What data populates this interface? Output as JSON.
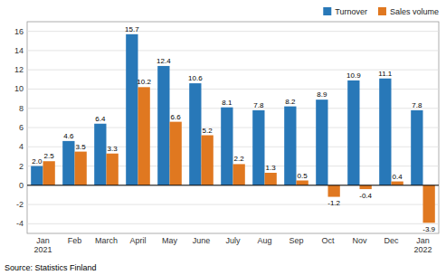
{
  "chart_data": {
    "type": "bar",
    "categories": [
      "Jan\n2021",
      "Feb",
      "March",
      "April",
      "May",
      "June",
      "July",
      "Aug",
      "Sep",
      "Oct",
      "Nov",
      "Dec",
      "Jan\n2022"
    ],
    "series": [
      {
        "name": "Turnover",
        "color": "#2878B8",
        "values": [
          2.0,
          4.6,
          6.4,
          15.7,
          12.4,
          10.6,
          8.1,
          7.8,
          8.2,
          8.9,
          10.9,
          11.1,
          7.8
        ],
        "value_labels": [
          "2.0",
          "4.6",
          "6.4",
          "15.7",
          "12.4",
          "10.6",
          "8.1",
          "7.8",
          "8.2",
          "8.9",
          "10.9",
          "11.1",
          "7.8"
        ]
      },
      {
        "name": "Sales volume",
        "color": "#E07820",
        "values": [
          2.5,
          3.5,
          3.3,
          10.2,
          6.6,
          5.2,
          2.2,
          1.3,
          0.5,
          -1.2,
          -0.4,
          0.4,
          -3.9
        ],
        "value_labels": [
          "2.5",
          "3.5",
          "3.3",
          "10.2",
          "6.6",
          "5.2",
          "2.2",
          "1.3",
          "0.5",
          "-1.2",
          "-0.4",
          "0.4",
          "-3.9"
        ]
      }
    ],
    "ylim": [
      -5,
      17
    ],
    "yticks": [
      -4,
      -2,
      0,
      2,
      4,
      6,
      8,
      10,
      12,
      14,
      16
    ],
    "grid": true,
    "legend": "upper right",
    "data_labels": true,
    "annotations": [
      "Source: Statistics Finland"
    ]
  }
}
